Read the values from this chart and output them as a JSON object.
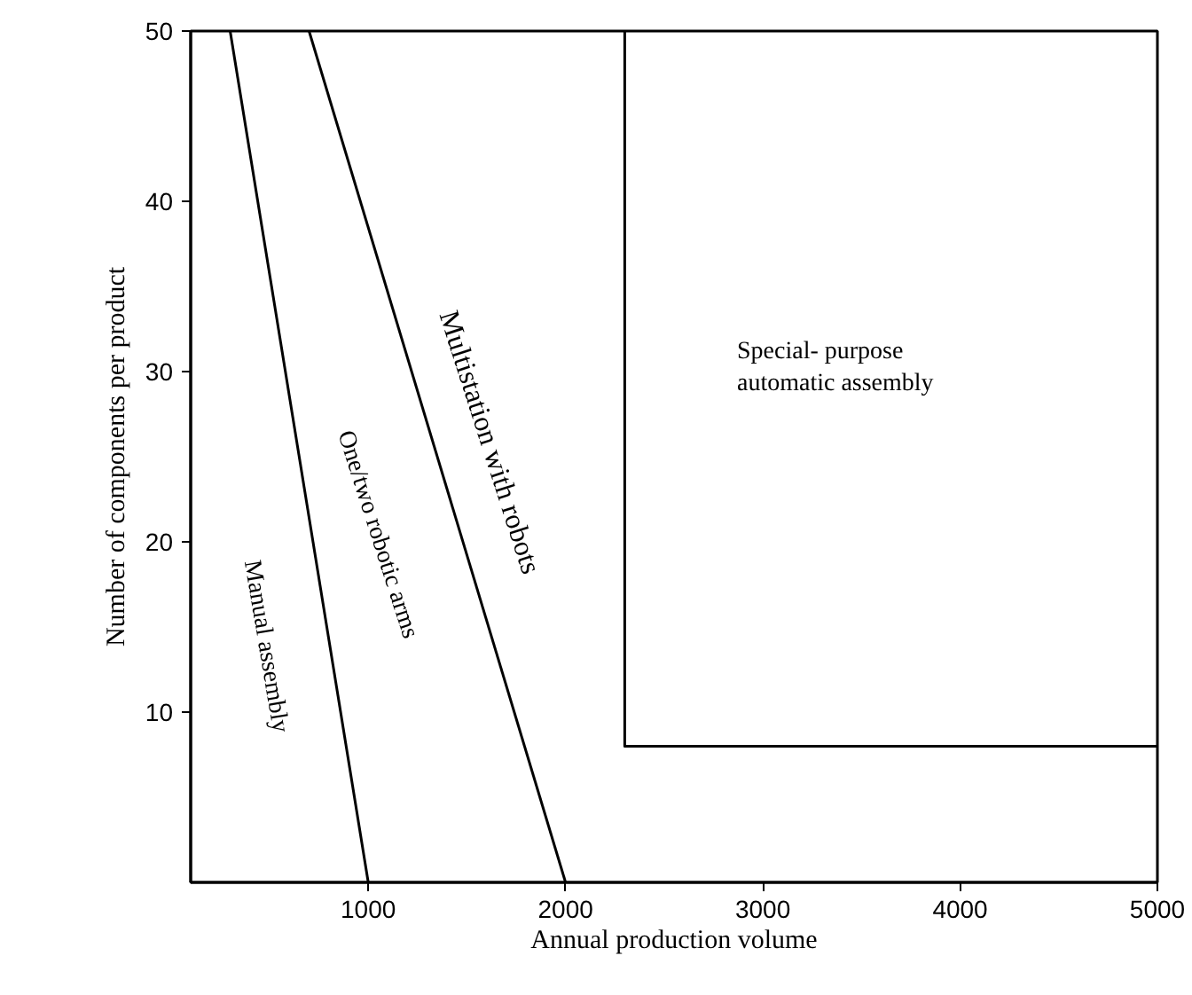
{
  "chart_data": {
    "type": "line",
    "xlabel": "Annual production volume",
    "ylabel": "Number of components per product",
    "xlim": [
      100,
      5000
    ],
    "ylim": [
      0,
      50
    ],
    "xticks": [
      1000,
      2000,
      3000,
      4000,
      5000
    ],
    "yticks": [
      10,
      20,
      30,
      40,
      50
    ],
    "grid": false,
    "marker": "none",
    "line_style": "solid",
    "series": [
      {
        "color": "#000000",
        "x": [
          300,
          1000
        ],
        "values": [
          50,
          0
        ]
      },
      {
        "color": "#000000",
        "x": [
          700,
          2000
        ],
        "values": [
          50,
          0
        ]
      },
      {
        "color": "#000000",
        "x": [
          2300,
          2300,
          5000
        ],
        "values": [
          50,
          8,
          8
        ]
      }
    ],
    "annotations": [
      "Manual assembly",
      "One/two robotic arms",
      "Multistation with robots",
      "Special- purpose\nautomatic assembly"
    ]
  }
}
